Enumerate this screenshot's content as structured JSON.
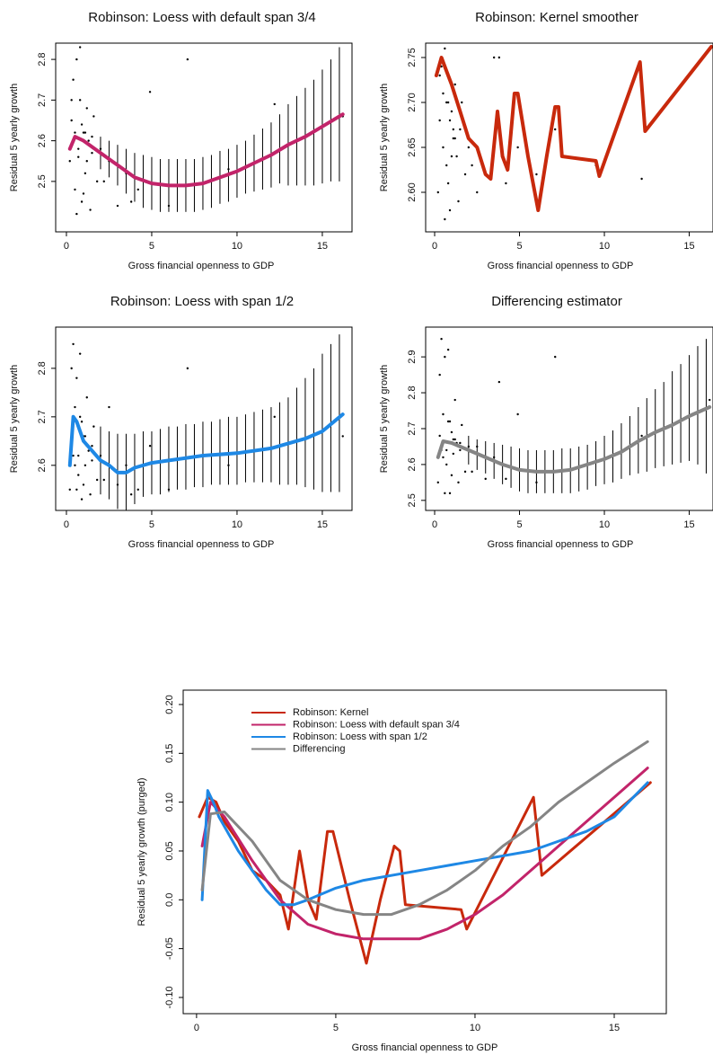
{
  "chart_data": [
    {
      "type": "line",
      "title": "Robinson: Loess with default span 3/4",
      "x_label": "Gross financial openness to GDP",
      "y_label": "Residual 5 yearly growth",
      "xlim": [
        -0.63,
        16.74
      ],
      "ylim": [
        2.376,
        2.84
      ],
      "xticks": [
        0,
        5,
        10,
        15
      ],
      "yticks": [
        2.5,
        2.6,
        2.7,
        2.8
      ],
      "points": {
        "x": [
          0.2,
          0.3,
          0.4,
          0.5,
          0.5,
          0.6,
          0.7,
          0.8,
          0.9,
          1.0,
          1.1,
          1.2,
          1.3,
          1.4,
          1.5,
          1.6,
          1.8,
          2.0,
          0.3,
          0.6,
          0.9,
          1.2,
          0.4,
          0.8,
          1.0,
          1.5,
          2.2,
          2.5,
          3.0,
          3.5,
          3.8,
          4.2,
          4.9,
          6.0,
          7.1,
          9.5,
          12.2,
          16.2,
          0.7,
          1.1
        ],
        "y": [
          2.55,
          2.65,
          2.75,
          2.48,
          2.62,
          2.8,
          2.58,
          2.7,
          2.45,
          2.62,
          2.52,
          2.68,
          2.6,
          2.43,
          2.57,
          2.66,
          2.5,
          2.58,
          2.7,
          2.42,
          2.64,
          2.55,
          2.6,
          2.83,
          2.47,
          2.61,
          2.5,
          2.55,
          2.44,
          2.52,
          2.45,
          2.48,
          2.72,
          2.44,
          2.8,
          2.53,
          2.69,
          2.66,
          2.56,
          2.62
        ]
      },
      "intervals": {
        "x": [
          2,
          2.5,
          3,
          3.5,
          4,
          4.5,
          5,
          5.5,
          6,
          6.5,
          7,
          7.5,
          8,
          8.5,
          9,
          9.5,
          10,
          10.5,
          11,
          11.5,
          12,
          12.5,
          13,
          13.5,
          14,
          14.5,
          15,
          15.5,
          16
        ],
        "lower": [
          2.53,
          2.51,
          2.49,
          2.47,
          2.45,
          2.435,
          2.43,
          2.425,
          2.425,
          2.425,
          2.425,
          2.425,
          2.43,
          2.435,
          2.445,
          2.45,
          2.46,
          2.47,
          2.475,
          2.48,
          2.485,
          2.495,
          2.49,
          2.49,
          2.49,
          2.49,
          2.495,
          2.5,
          2.5
        ],
        "upper": [
          2.61,
          2.6,
          2.59,
          2.58,
          2.57,
          2.565,
          2.56,
          2.555,
          2.555,
          2.555,
          2.555,
          2.555,
          2.56,
          2.565,
          2.575,
          2.58,
          2.59,
          2.6,
          2.615,
          2.63,
          2.645,
          2.665,
          2.69,
          2.71,
          2.73,
          2.75,
          2.775,
          2.8,
          2.83
        ]
      },
      "line": {
        "color": "#c2246a",
        "x": [
          0.2,
          0.5,
          1,
          2,
          3,
          4,
          5,
          6,
          7,
          8,
          9,
          10,
          11,
          12,
          13,
          14,
          15,
          16.2
        ],
        "y": [
          2.58,
          2.61,
          2.6,
          2.57,
          2.54,
          2.51,
          2.495,
          2.49,
          2.49,
          2.495,
          2.51,
          2.525,
          2.545,
          2.565,
          2.59,
          2.61,
          2.635,
          2.665
        ]
      }
    },
    {
      "type": "line",
      "title": "Robinson: Kernel smoother",
      "x_label": "Gross financial openness to GDP",
      "y_label": "Residual 5 yearly growth",
      "xlim": [
        -0.53,
        16.4
      ],
      "ylim": [
        2.556,
        2.766
      ],
      "xticks": [
        0,
        5,
        10,
        15
      ],
      "yticks": [
        {
          "value": 2.6,
          "label": "2.60"
        },
        2.65,
        {
          "value": 2.7,
          "label": "2.70"
        },
        2.75
      ],
      "points": {
        "x": [
          0.2,
          0.3,
          0.4,
          0.5,
          0.5,
          0.6,
          0.7,
          0.8,
          0.9,
          1.0,
          1.1,
          1.2,
          1.3,
          1.4,
          1.5,
          1.6,
          1.8,
          2.0,
          0.3,
          0.6,
          0.9,
          1.2,
          0.4,
          0.8,
          1.0,
          1.5,
          2.2,
          2.5,
          3.0,
          3.5,
          3.8,
          4.2,
          4.9,
          6.0,
          7.1,
          9.5,
          12.2,
          16.2,
          0.7,
          1.1
        ],
        "y": [
          2.6,
          2.68,
          2.74,
          2.65,
          2.71,
          2.76,
          2.63,
          2.7,
          2.58,
          2.69,
          2.66,
          2.72,
          2.64,
          2.59,
          2.67,
          2.7,
          2.62,
          2.65,
          2.73,
          2.57,
          2.68,
          2.66,
          2.75,
          2.61,
          2.64,
          2.69,
          2.63,
          2.6,
          2.62,
          2.75,
          2.75,
          2.61,
          2.65,
          2.62,
          2.67,
          2.63,
          2.615,
          2.76,
          2.7,
          2.67
        ]
      },
      "line": {
        "color": "#c8290c",
        "x": [
          0.1,
          0.4,
          0.7,
          1.0,
          1.5,
          2.0,
          2.5,
          3.0,
          3.3,
          3.7,
          4.0,
          4.3,
          4.7,
          4.9,
          5.5,
          6.1,
          6.6,
          7.1,
          7.3,
          7.5,
          9.5,
          9.7,
          12.1,
          12.4,
          16.3
        ],
        "y": [
          2.73,
          2.75,
          2.735,
          2.72,
          2.69,
          2.66,
          2.65,
          2.62,
          2.615,
          2.69,
          2.64,
          2.625,
          2.71,
          2.71,
          2.64,
          2.58,
          2.64,
          2.695,
          2.695,
          2.64,
          2.635,
          2.618,
          2.745,
          2.668,
          2.762
        ]
      }
    },
    {
      "type": "line",
      "title": "Robinson: Loess with span 1/2",
      "x_label": "Gross financial openness to GDP",
      "y_label": "Residual 5 yearly growth",
      "xlim": [
        -0.63,
        16.74
      ],
      "ylim": [
        2.507,
        2.885
      ],
      "xticks": [
        0,
        5,
        10,
        15
      ],
      "yticks": [
        2.6,
        2.7,
        2.8
      ],
      "points": {
        "x": [
          0.2,
          0.3,
          0.4,
          0.5,
          0.5,
          0.6,
          0.7,
          0.8,
          0.9,
          1.0,
          1.1,
          1.2,
          1.3,
          1.4,
          1.5,
          1.6,
          1.8,
          2.0,
          0.3,
          0.6,
          0.9,
          1.2,
          0.4,
          0.8,
          1.0,
          1.5,
          2.2,
          2.5,
          3.0,
          3.5,
          3.8,
          4.2,
          4.9,
          6.0,
          7.1,
          9.5,
          12.2,
          16.2,
          0.7,
          1.1
        ],
        "y": [
          2.55,
          2.65,
          2.85,
          2.6,
          2.72,
          2.78,
          2.58,
          2.7,
          2.53,
          2.66,
          2.6,
          2.74,
          2.63,
          2.54,
          2.61,
          2.68,
          2.57,
          2.62,
          2.8,
          2.55,
          2.69,
          2.64,
          2.62,
          2.83,
          2.56,
          2.64,
          2.57,
          2.72,
          2.56,
          2.6,
          2.54,
          2.55,
          2.64,
          2.55,
          2.8,
          2.6,
          2.7,
          2.66,
          2.62,
          2.66
        ]
      },
      "intervals": {
        "x": [
          2,
          2.5,
          3,
          3.5,
          4,
          4.5,
          5,
          5.5,
          6,
          6.5,
          7,
          7.5,
          8,
          8.5,
          9,
          9.5,
          10,
          10.5,
          11,
          11.5,
          12,
          12.5,
          13,
          13.5,
          14,
          14.5,
          15,
          15.5,
          16
        ],
        "lower": [
          2.54,
          2.53,
          2.51,
          2.505,
          2.52,
          2.535,
          2.54,
          2.54,
          2.545,
          2.55,
          2.55,
          2.555,
          2.555,
          2.56,
          2.56,
          2.56,
          2.56,
          2.565,
          2.565,
          2.565,
          2.565,
          2.56,
          2.56,
          2.56,
          2.555,
          2.55,
          2.545,
          2.545,
          2.545
        ],
        "upper": [
          2.68,
          2.67,
          2.665,
          2.665,
          2.665,
          2.67,
          2.67,
          2.675,
          2.68,
          2.68,
          2.685,
          2.685,
          2.69,
          2.69,
          2.695,
          2.7,
          2.7,
          2.705,
          2.71,
          2.715,
          2.72,
          2.73,
          2.74,
          2.76,
          2.78,
          2.8,
          2.83,
          2.85,
          2.87
        ]
      },
      "line": {
        "color": "#1e88e5",
        "x": [
          0.2,
          0.4,
          0.6,
          0.8,
          1.0,
          1.5,
          2.0,
          2.5,
          3.0,
          3.5,
          4,
          5,
          6,
          8,
          10,
          12,
          14,
          15,
          16.2
        ],
        "y": [
          2.6,
          2.7,
          2.69,
          2.67,
          2.65,
          2.63,
          2.61,
          2.6,
          2.585,
          2.585,
          2.595,
          2.605,
          2.61,
          2.62,
          2.625,
          2.635,
          2.655,
          2.67,
          2.705
        ]
      }
    },
    {
      "type": "line",
      "title": "Differencing estimator",
      "x_label": "Gross financial openness to GDP",
      "y_label": "Residual 5 yearly growth",
      "xlim": [
        -0.53,
        16.4
      ],
      "ylim": [
        2.472,
        2.983
      ],
      "xticks": [
        0,
        5,
        10,
        15
      ],
      "yticks": [
        2.5,
        2.6,
        2.7,
        2.8,
        2.9
      ],
      "points": {
        "x": [
          0.2,
          0.3,
          0.4,
          0.5,
          0.5,
          0.6,
          0.7,
          0.8,
          0.9,
          1.0,
          1.1,
          1.2,
          1.3,
          1.4,
          1.5,
          1.6,
          1.8,
          2.0,
          0.3,
          0.6,
          0.9,
          1.2,
          0.4,
          0.8,
          1.0,
          1.5,
          2.2,
          2.5,
          3.0,
          3.5,
          3.8,
          4.2,
          4.9,
          6.0,
          7.1,
          9.5,
          12.2,
          16.2,
          0.7,
          1.1
        ],
        "y": [
          2.55,
          2.68,
          2.95,
          2.62,
          2.74,
          2.9,
          2.6,
          2.72,
          2.52,
          2.69,
          2.63,
          2.78,
          2.66,
          2.55,
          2.64,
          2.71,
          2.58,
          2.65,
          2.85,
          2.52,
          2.72,
          2.67,
          2.64,
          2.92,
          2.57,
          2.66,
          2.58,
          2.65,
          2.56,
          2.62,
          2.83,
          2.56,
          2.74,
          2.55,
          2.9,
          2.61,
          2.68,
          2.78,
          2.64,
          2.67
        ]
      },
      "intervals": {
        "x": [
          2,
          2.5,
          3,
          3.5,
          4,
          4.5,
          5,
          5.5,
          6,
          6.5,
          7,
          7.5,
          8,
          8.5,
          9,
          9.5,
          10,
          10.5,
          11,
          11.5,
          12,
          12.5,
          13,
          13.5,
          14,
          14.5,
          15,
          15.5,
          16
        ],
        "lower": [
          2.6,
          2.585,
          2.575,
          2.56,
          2.545,
          2.535,
          2.525,
          2.52,
          2.52,
          2.52,
          2.52,
          2.52,
          2.52,
          2.525,
          2.53,
          2.54,
          2.545,
          2.55,
          2.56,
          2.57,
          2.575,
          2.58,
          2.59,
          2.595,
          2.6,
          2.605,
          2.61,
          2.6,
          2.575
        ],
        "upper": [
          2.68,
          2.67,
          2.665,
          2.66,
          2.655,
          2.65,
          2.645,
          2.64,
          2.64,
          2.64,
          2.64,
          2.645,
          2.645,
          2.65,
          2.655,
          2.665,
          2.68,
          2.695,
          2.715,
          2.735,
          2.76,
          2.785,
          2.81,
          2.83,
          2.86,
          2.88,
          2.905,
          2.93,
          2.95
        ]
      },
      "line": {
        "color": "#858585",
        "x": [
          0.2,
          0.5,
          1,
          2,
          3,
          4,
          5,
          6,
          7,
          8,
          9,
          10,
          11,
          12,
          13,
          14,
          15,
          16.2
        ],
        "y": [
          2.62,
          2.665,
          2.66,
          2.64,
          2.62,
          2.6,
          2.585,
          2.58,
          2.58,
          2.585,
          2.6,
          2.615,
          2.635,
          2.665,
          2.69,
          2.71,
          2.735,
          2.76
        ]
      }
    },
    {
      "type": "line",
      "x_label": "Gross financial openness to GDP",
      "y_label": "Residual 5 yearly growth (purged)",
      "xlim": [
        -0.48,
        16.87
      ],
      "ylim": [
        -0.1166,
        0.2147
      ],
      "xticks": [
        0,
        5,
        10,
        15
      ],
      "yticks": [
        {
          "value": -0.1,
          "label": "-0.10"
        },
        -0.05,
        {
          "value": 0,
          "label": "0.0"
        },
        0.05,
        {
          "value": 0.1,
          "label": "0.10"
        },
        0.15,
        {
          "value": 0.2,
          "label": "0.20"
        }
      ],
      "legend": "top-left",
      "series": [
        {
          "name": "Robinson: Kernel",
          "color": "#c8290c",
          "x": [
            0.1,
            0.4,
            0.7,
            1.0,
            1.5,
            2.0,
            2.5,
            3.0,
            3.3,
            3.7,
            4.0,
            4.3,
            4.7,
            4.9,
            5.5,
            6.1,
            6.6,
            7.1,
            7.3,
            7.5,
            9.5,
            9.7,
            12.1,
            12.4,
            16.3
          ],
          "values": [
            0.085,
            0.105,
            0.1,
            0.08,
            0.06,
            0.03,
            0.02,
            0.005,
            -0.03,
            0.05,
            0,
            -0.02,
            0.07,
            0.07,
            0,
            -0.065,
            0,
            0.055,
            0.05,
            -0.005,
            -0.01,
            -0.03,
            0.105,
            0.025,
            0.12
          ]
        },
        {
          "name": "Robinson: Loess with default span 3/4",
          "color": "#c2246a",
          "x": [
            0.2,
            0.5,
            1,
            2,
            3,
            4,
            5,
            6,
            7,
            8,
            9,
            10,
            11,
            12,
            13,
            14,
            15,
            16.2
          ],
          "values": [
            0.055,
            0.1,
            0.085,
            0.04,
            0,
            -0.025,
            -0.035,
            -0.04,
            -0.04,
            -0.04,
            -0.03,
            -0.015,
            0.005,
            0.03,
            0.055,
            0.08,
            0.105,
            0.135
          ]
        },
        {
          "name": "Robinson: Loess with span 1/2",
          "color": "#1e88e5",
          "x": [
            0.2,
            0.4,
            0.6,
            0.8,
            1,
            1.5,
            2,
            2.5,
            3,
            3.5,
            4,
            5,
            6,
            8,
            10,
            12,
            14,
            15,
            16.2
          ],
          "values": [
            0,
            0.112,
            0.1,
            0.085,
            0.075,
            0.05,
            0.03,
            0.01,
            -0.005,
            -0.005,
            0,
            0.012,
            0.02,
            0.03,
            0.04,
            0.05,
            0.07,
            0.085,
            0.12
          ]
        },
        {
          "name": "Differencing",
          "color": "#858585",
          "x": [
            0.2,
            0.5,
            1,
            2,
            3,
            4,
            5,
            6,
            7,
            8,
            9,
            10,
            11,
            12,
            13,
            14,
            15,
            16.2
          ],
          "values": [
            0.01,
            0.088,
            0.09,
            0.06,
            0.02,
            0,
            -0.01,
            -0.015,
            -0.015,
            -0.005,
            0.01,
            0.03,
            0.055,
            0.075,
            0.1,
            0.12,
            0.14,
            0.162
          ]
        }
      ]
    }
  ]
}
